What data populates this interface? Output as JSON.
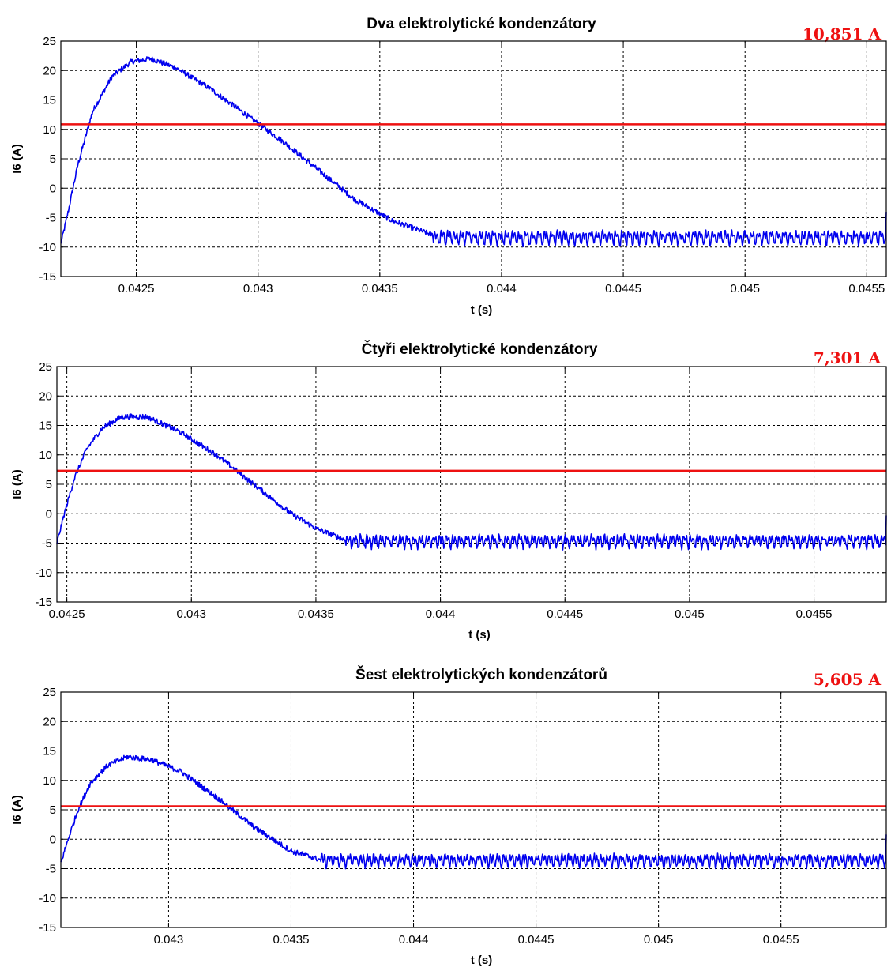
{
  "chart_data": [
    {
      "type": "line",
      "title": "Dva elektrolytické kondenzátory",
      "xlabel": "t (s)",
      "ylabel": "I6 (A)",
      "xlim": [
        0.04219,
        0.04558
      ],
      "ylim": [
        -15,
        25
      ],
      "xticks": [
        0.0425,
        0.043,
        0.0435,
        0.044,
        0.0445,
        0.045,
        0.0455
      ],
      "xtick_labels": [
        "0.0425",
        "0.043",
        "0.0435",
        "0.044",
        "0.0445",
        "0.045",
        "0.0455"
      ],
      "yticks": [
        -15,
        -10,
        -5,
        0,
        5,
        10,
        15,
        20,
        25
      ],
      "ytick_labels": [
        "-15",
        "-10",
        "-5",
        "0",
        "5",
        "10",
        "15",
        "20",
        "25"
      ],
      "grid": true,
      "annotation": "10,851 A",
      "reference_line": 10.851,
      "series": [
        {
          "color": "#0000ee",
          "x": [
            0.04219,
            0.04222,
            0.04226,
            0.04232,
            0.0424,
            0.04248,
            0.04256,
            0.04266,
            0.0428,
            0.04295,
            0.0431,
            0.04325,
            0.0434,
            0.04355,
            0.04372
          ],
          "y": [
            -9.5,
            -4,
            4,
            13,
            19,
            21.5,
            22,
            20.5,
            17,
            12.5,
            8,
            3,
            -2,
            -5.5,
            -8
          ],
          "steady_mean": -8.5,
          "ripple_amplitude": 1.8
        }
      ]
    },
    {
      "type": "line",
      "title": "Čtyři elektrolytické kondenzátory",
      "xlabel": "t (s)",
      "ylabel": "I6 (A)",
      "xlim": [
        0.04246,
        0.04579
      ],
      "ylim": [
        -15,
        25
      ],
      "xticks": [
        0.0425,
        0.043,
        0.0435,
        0.044,
        0.0445,
        0.045,
        0.0455
      ],
      "xtick_labels": [
        "0.0425",
        "0.043",
        "0.0435",
        "0.044",
        "0.0445",
        "0.045",
        "0.0455"
      ],
      "yticks": [
        -15,
        -10,
        -5,
        0,
        5,
        10,
        15,
        20,
        25
      ],
      "ytick_labels": [
        "-15",
        "-10",
        "-5",
        "0",
        "5",
        "10",
        "15",
        "20",
        "25"
      ],
      "grid": true,
      "annotation": "7,301 A",
      "reference_line": 7.301,
      "series": [
        {
          "color": "#0000ee",
          "x": [
            0.04246,
            0.04249,
            0.04253,
            0.04258,
            0.04264,
            0.04272,
            0.04282,
            0.04295,
            0.0431,
            0.04325,
            0.0434,
            0.0435,
            0.04362
          ],
          "y": [
            -5,
            0,
            6,
            11,
            14.5,
            16.5,
            16.5,
            14,
            10,
            5,
            0,
            -2.5,
            -4.5
          ],
          "steady_mean": -4.8,
          "ripple_amplitude": 1.6
        }
      ]
    },
    {
      "type": "line",
      "title": "Šest elektrolytických kondenzátorů",
      "xlabel": "t (s)",
      "ylabel": "I6 (A)",
      "xlim": [
        0.04256,
        0.04593
      ],
      "ylim": [
        -15,
        25
      ],
      "xticks": [
        0.043,
        0.0435,
        0.044,
        0.0445,
        0.045,
        0.0455
      ],
      "xtick_labels": [
        "0.043",
        "0.0435",
        "0.044",
        "0.0445",
        "0.045",
        "0.0455"
      ],
      "yticks": [
        -15,
        -10,
        -5,
        0,
        5,
        10,
        15,
        20,
        25
      ],
      "ytick_labels": [
        "-15",
        "-10",
        "-5",
        "0",
        "5",
        "10",
        "15",
        "20",
        "25"
      ],
      "grid": true,
      "annotation": "5,605 A",
      "reference_line": 5.605,
      "series": [
        {
          "color": "#0000ee",
          "x": [
            0.04256,
            0.04259,
            0.04263,
            0.04268,
            0.04275,
            0.04283,
            0.04293,
            0.04305,
            0.0432,
            0.04335,
            0.0435,
            0.04362
          ],
          "y": [
            -4,
            0,
            5,
            9.5,
            12.5,
            14,
            13.5,
            11.5,
            7,
            2,
            -2,
            -3.5
          ],
          "steady_mean": -3.7,
          "ripple_amplitude": 1.5
        }
      ]
    }
  ],
  "colors": {
    "signal": "#0000ee",
    "reference": "#ee1111",
    "grid": "#000000"
  }
}
